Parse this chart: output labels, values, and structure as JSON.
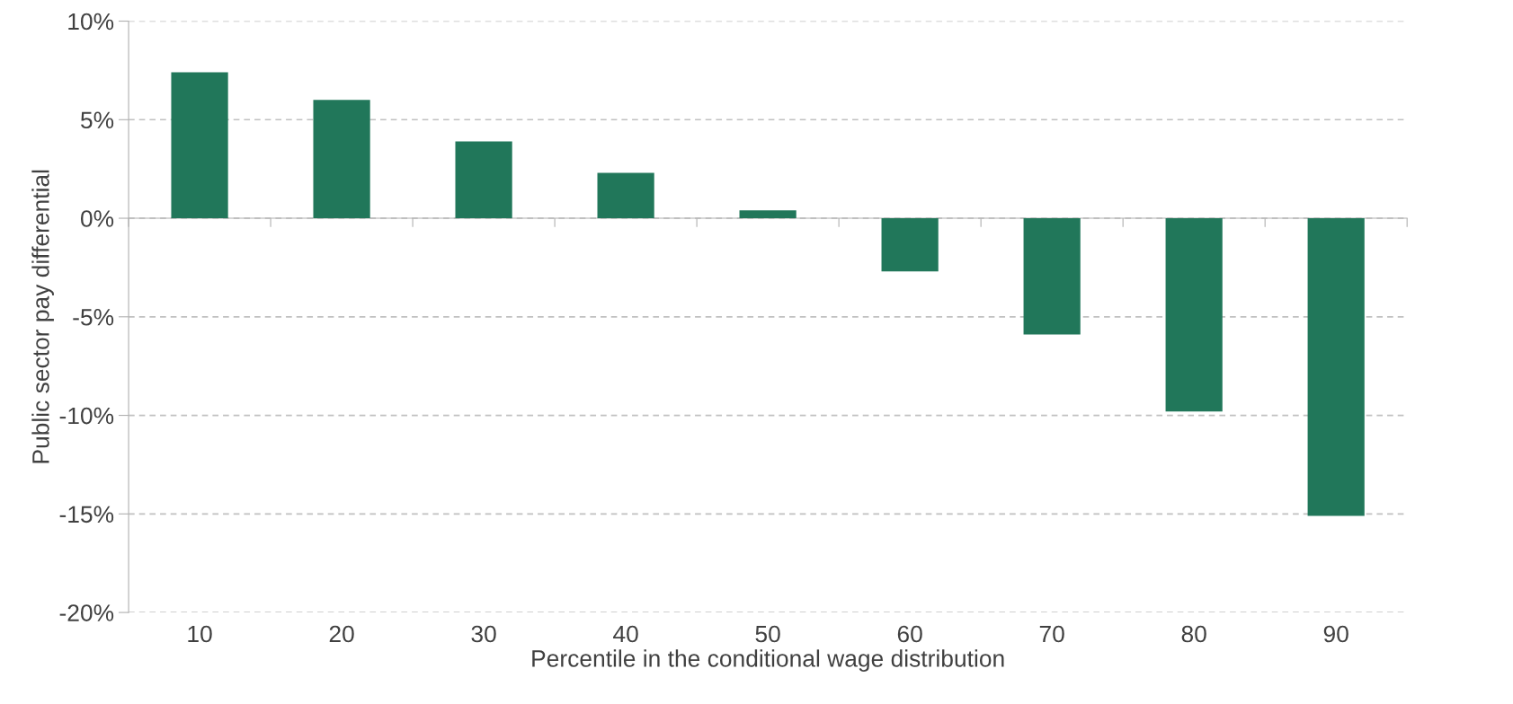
{
  "chart_data": {
    "type": "bar",
    "xlabel": "Percentile in the conditional wage distribution",
    "ylabel": "Public sector pay differential",
    "categories": [
      "10",
      "20",
      "30",
      "40",
      "50",
      "60",
      "70",
      "80",
      "90"
    ],
    "values": [
      7.4,
      6.0,
      3.9,
      2.3,
      0.4,
      -2.7,
      -5.9,
      -9.8,
      -15.1
    ],
    "color": "#21775a",
    "ylim": [
      -20,
      10
    ],
    "yticks": [
      {
        "value": -20,
        "label": "-20%"
      },
      {
        "value": -15,
        "label": "-15%"
      },
      {
        "value": -10,
        "label": "-10%"
      },
      {
        "value": -5,
        "label": "-5%"
      },
      {
        "value": 0,
        "label": "0%"
      },
      {
        "value": 5,
        "label": "5%"
      },
      {
        "value": 10,
        "label": "10%"
      }
    ],
    "grid": "y"
  }
}
